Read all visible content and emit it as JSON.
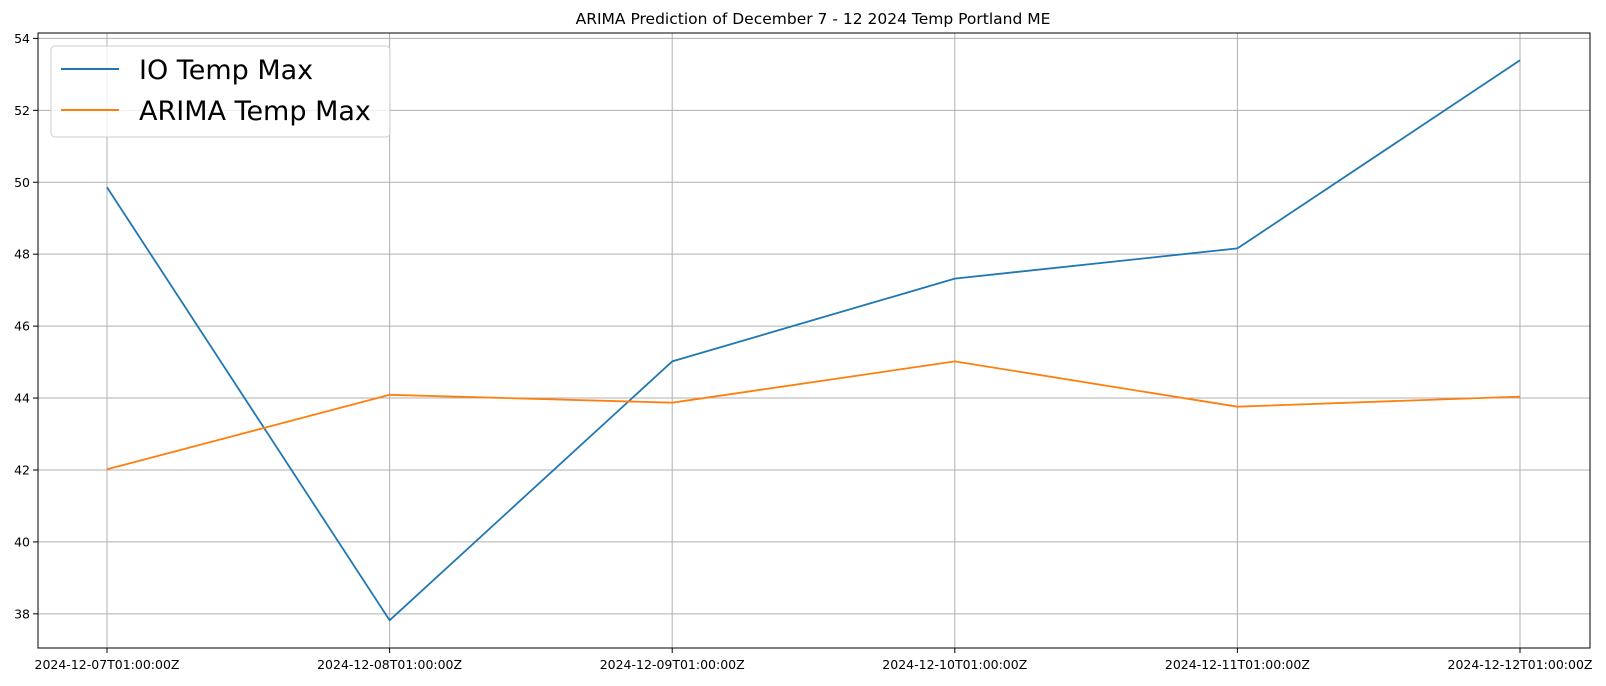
{
  "chart_data": {
    "type": "line",
    "title": "ARIMA Prediction of December 7 - 12 2024 Temp Portland ME",
    "xlabel": "",
    "ylabel": "",
    "categories": [
      "2024-12-07T01:00:00Z",
      "2024-12-08T01:00:00Z",
      "2024-12-09T01:00:00Z",
      "2024-12-10T01:00:00Z",
      "2024-12-11T01:00:00Z",
      "2024-12-12T01:00:00Z"
    ],
    "series": [
      {
        "name": "IO Temp Max",
        "color": "#1f77b4",
        "values": [
          49.86,
          37.82,
          45.02,
          47.32,
          48.16,
          53.39
        ]
      },
      {
        "name": "ARIMA Temp Max",
        "color": "#ff7f0e",
        "values": [
          42.02,
          44.09,
          43.87,
          45.02,
          43.76,
          44.04
        ]
      }
    ],
    "ylim": [
      37.05,
      54.15
    ],
    "yticks": [
      38,
      40,
      42,
      44,
      46,
      48,
      50,
      52,
      54
    ],
    "grid": true,
    "legend_position": "top-left"
  }
}
